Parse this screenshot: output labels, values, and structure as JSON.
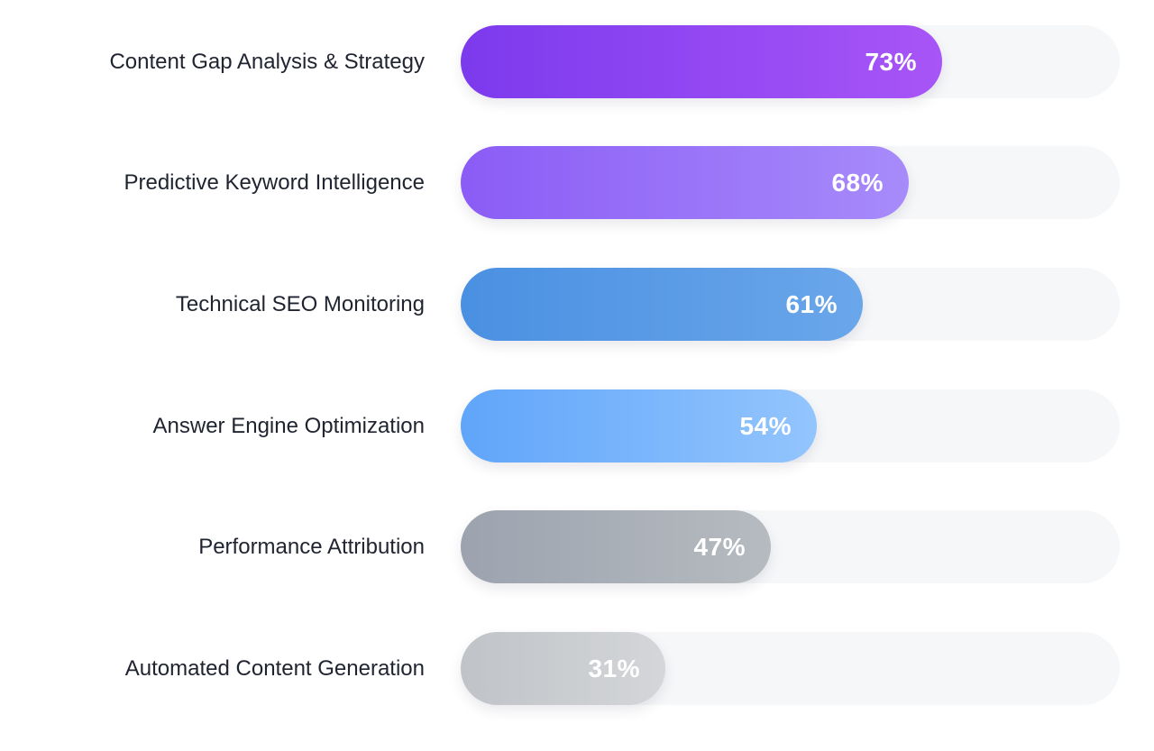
{
  "chart_data": {
    "type": "bar",
    "orientation": "horizontal",
    "xlim": [
      0,
      100
    ],
    "categories": [
      "Content Gap Analysis & Strategy",
      "Predictive Keyword Intelligence",
      "Technical SEO Monitoring",
      "Answer Engine Optimization",
      "Performance Attribution",
      "Automated Content Generation"
    ],
    "values": [
      73,
      68,
      61,
      54,
      47,
      31
    ],
    "value_labels": [
      "73%",
      "68%",
      "61%",
      "54%",
      "47%",
      "31%"
    ],
    "bar_colors": [
      [
        "#7c3aed",
        "#a855f7"
      ],
      [
        "#8b5cf6",
        "#a78bfa"
      ],
      [
        "#4a90e2",
        "#6aa6ea"
      ],
      [
        "#60a5fa",
        "#93c5fd"
      ],
      [
        "#9ca3af",
        "#b6bbc0"
      ],
      [
        "#c0c3c7",
        "#d4d6d9"
      ]
    ],
    "track_color": "#f6f7f9",
    "grid": false,
    "legend": "none"
  }
}
